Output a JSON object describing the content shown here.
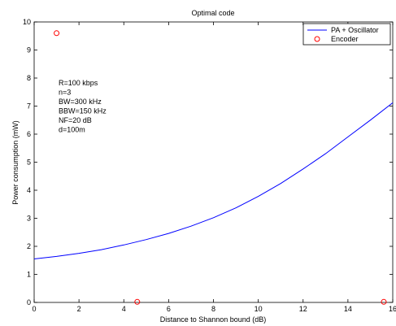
{
  "chart_data": {
    "type": "line",
    "title": "Optimal code",
    "xlabel": "Distance to Shannon bound (dB)",
    "ylabel": "Power consumption (mW)",
    "xlim": [
      0,
      16
    ],
    "ylim": [
      0,
      10
    ],
    "xticks": [
      0,
      2,
      4,
      6,
      8,
      10,
      12,
      14,
      16
    ],
    "yticks": [
      0,
      1,
      2,
      3,
      4,
      5,
      6,
      7,
      8,
      9,
      10
    ],
    "grid": false,
    "legend_position": "top-right",
    "series": [
      {
        "name": "PA + Oscillator",
        "style": "line",
        "color": "#0000ff",
        "x": [
          0,
          1,
          2,
          3,
          4,
          5,
          6,
          7,
          8,
          9,
          10,
          11,
          12,
          13,
          14,
          15,
          16
        ],
        "y": [
          1.55,
          1.64,
          1.75,
          1.88,
          2.05,
          2.24,
          2.46,
          2.72,
          3.02,
          3.37,
          3.78,
          4.24,
          4.76,
          5.3,
          5.9,
          6.5,
          7.12
        ]
      },
      {
        "name": "Encoder",
        "style": "marker-circle",
        "color": "#ff0000",
        "x": [
          1,
          4.6,
          15.6
        ],
        "y": [
          9.6,
          0.02,
          0.02
        ]
      }
    ],
    "annotations": [
      "R=100 kbps",
      "n=3",
      "BW=300 kHz",
      "BBW=150 kHz",
      "NF=20 dB",
      "d=100m"
    ]
  }
}
